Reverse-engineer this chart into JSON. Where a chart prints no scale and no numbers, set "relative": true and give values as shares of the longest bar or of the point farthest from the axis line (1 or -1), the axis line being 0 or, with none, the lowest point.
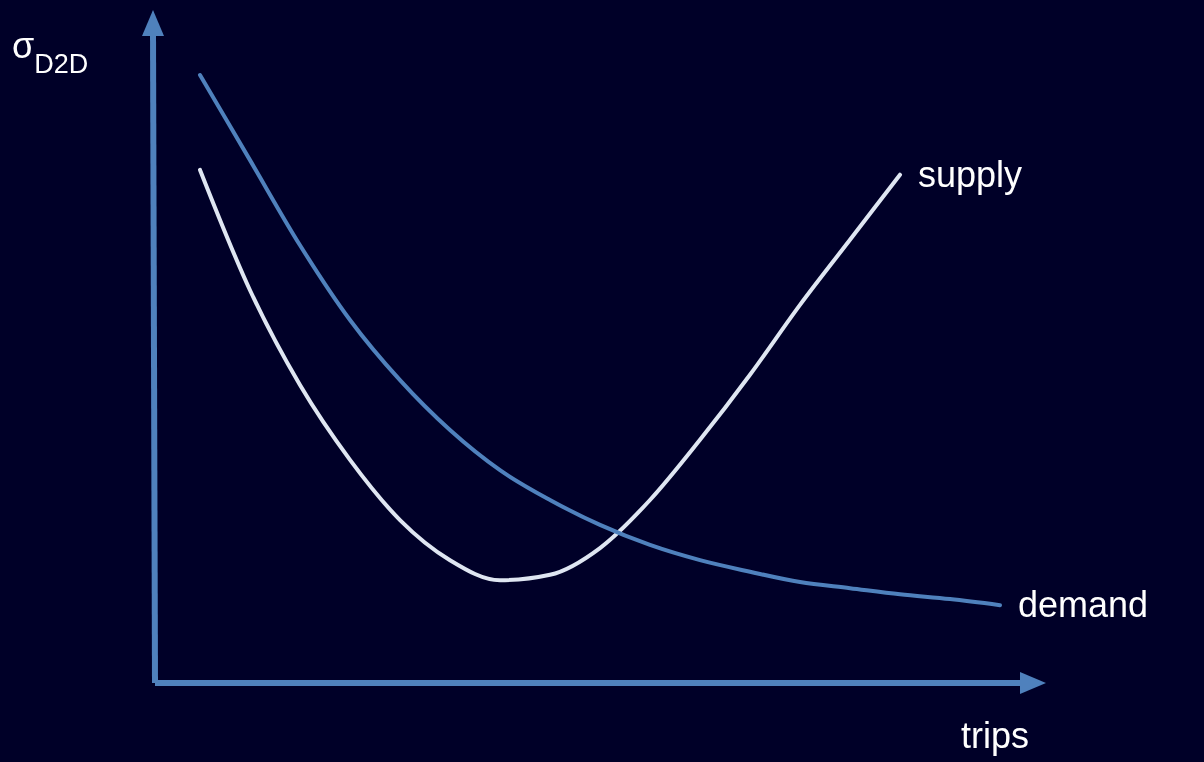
{
  "chart_data": {
    "type": "line",
    "relative": true,
    "xlabel": "trips",
    "ylabel": "σ$_{D2D}$",
    "categories": [
      null,
      null,
      null,
      null,
      null,
      null,
      null,
      null,
      null,
      null,
      null,
      null,
      null,
      null,
      null,
      null,
      null
    ],
    "series": [
      {
        "name": "supply",
        "color": "#dfe6f2",
        "values": [
          0.844,
          0.646,
          0.49,
          0.367,
          0.268,
          0.202,
          0.169,
          0.178,
          0.222,
          0.301,
          0.4,
          0.507,
          0.622,
          0.729,
          0.836,
          null,
          null
        ]
      },
      {
        "name": "demand",
        "color": "#4f81bd",
        "values": [
          1,
          0.86,
          0.72,
          0.597,
          0.498,
          0.416,
          0.35,
          0.301,
          0.26,
          0.227,
          0.202,
          0.183,
          0.166,
          0.156,
          0.146,
          0.138,
          0.128
        ]
      }
    ]
  }
}
